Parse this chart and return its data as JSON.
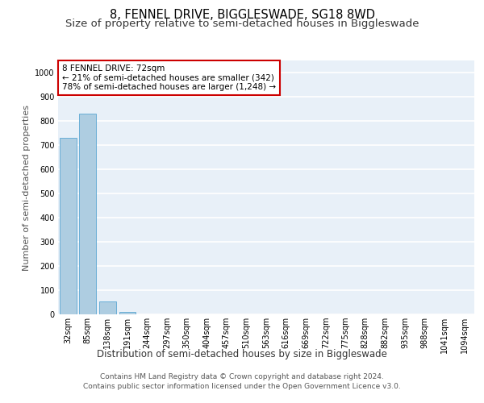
{
  "title": "8, FENNEL DRIVE, BIGGLESWADE, SG18 8WD",
  "subtitle": "Size of property relative to semi-detached houses in Biggleswade",
  "xlabel": "Distribution of semi-detached houses by size in Biggleswade",
  "ylabel": "Number of semi-detached properties",
  "bar_labels": [
    "32sqm",
    "85sqm",
    "138sqm",
    "191sqm",
    "244sqm",
    "297sqm",
    "350sqm",
    "404sqm",
    "457sqm",
    "510sqm",
    "563sqm",
    "616sqm",
    "669sqm",
    "722sqm",
    "775sqm",
    "828sqm",
    "882sqm",
    "935sqm",
    "988sqm",
    "1041sqm",
    "1094sqm"
  ],
  "bar_values": [
    730,
    830,
    55,
    10,
    0,
    0,
    0,
    0,
    0,
    0,
    0,
    0,
    0,
    0,
    0,
    0,
    0,
    0,
    0,
    0,
    0
  ],
  "bar_color": "#aecde1",
  "bar_edge_color": "#6aaed6",
  "annotation_box_text": "8 FENNEL DRIVE: 72sqm\n← 21% of semi-detached houses are smaller (342)\n78% of semi-detached houses are larger (1,248) →",
  "annotation_box_color": "#ffffff",
  "annotation_box_edge_color": "#cc0000",
  "ylim": [
    0,
    1050
  ],
  "yticks": [
    0,
    100,
    200,
    300,
    400,
    500,
    600,
    700,
    800,
    900,
    1000
  ],
  "background_color": "#ffffff",
  "plot_background_color": "#e8f0f8",
  "grid_color": "#ffffff",
  "footer_line1": "Contains HM Land Registry data © Crown copyright and database right 2024.",
  "footer_line2": "Contains public sector information licensed under the Open Government Licence v3.0.",
  "title_fontsize": 10.5,
  "subtitle_fontsize": 9.5,
  "xlabel_fontsize": 8.5,
  "ylabel_fontsize": 8,
  "tick_fontsize": 7,
  "footer_fontsize": 6.5,
  "annotation_fontsize": 7.5
}
